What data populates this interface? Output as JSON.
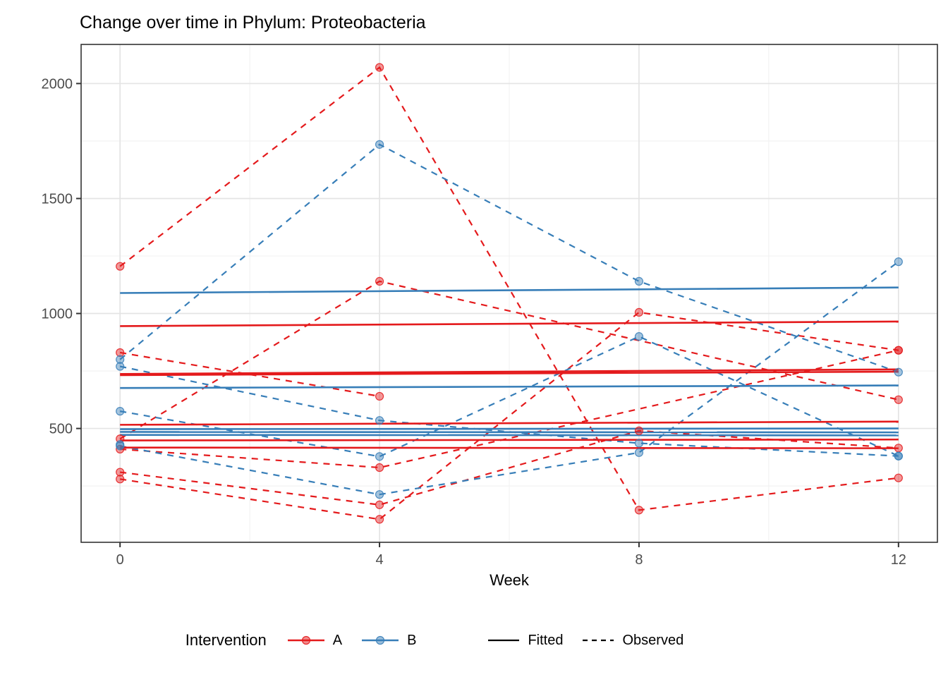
{
  "chart_data": {
    "type": "line",
    "title": "Change over time in Phylum: Proteobacteria",
    "xlabel": "Week",
    "ylabel": "",
    "xlim": [
      -0.6,
      12.6
    ],
    "ylim": [
      5,
      2170
    ],
    "x_ticks": [
      0,
      4,
      8,
      12
    ],
    "x_minor": [
      2,
      6,
      10
    ],
    "y_ticks": [
      500,
      1000,
      1500,
      2000
    ],
    "y_minor": [
      250,
      750,
      1250,
      1750
    ],
    "grid": "on",
    "legend_position": "bottom",
    "interventions": [
      {
        "name": "A",
        "color": "#E41A1C"
      },
      {
        "name": "B",
        "color": "#377EB8"
      }
    ],
    "observed": [
      {
        "group": "A",
        "points": [
          [
            0,
            1205
          ],
          [
            4,
            2070
          ],
          [
            8,
            145
          ],
          [
            12,
            285
          ]
        ]
      },
      {
        "group": "A",
        "points": [
          [
            0,
            455
          ],
          [
            4,
            1140
          ],
          [
            12,
            625
          ]
        ]
      },
      {
        "group": "A",
        "points": [
          [
            0,
            280
          ],
          [
            4,
            105
          ],
          [
            8,
            1005
          ],
          [
            12,
            840
          ]
        ]
      },
      {
        "group": "A",
        "points": [
          [
            0,
            830
          ],
          [
            4,
            640
          ]
        ]
      },
      {
        "group": "A",
        "points": [
          [
            0,
            410
          ],
          [
            4,
            330
          ],
          [
            12,
            840
          ]
        ]
      },
      {
        "group": "A",
        "points": [
          [
            0,
            310
          ],
          [
            4,
            168
          ],
          [
            8,
            490
          ],
          [
            12,
            415
          ]
        ]
      },
      {
        "group": "B",
        "points": [
          [
            0,
            800
          ],
          [
            4,
            1735
          ],
          [
            8,
            1140
          ],
          [
            12,
            745
          ]
        ]
      },
      {
        "group": "B",
        "points": [
          [
            0,
            575
          ],
          [
            4,
            378
          ],
          [
            8,
            900
          ],
          [
            12,
            380
          ]
        ]
      },
      {
        "group": "B",
        "points": [
          [
            0,
            424
          ],
          [
            4,
            213
          ],
          [
            8,
            395
          ],
          [
            12,
            1225
          ]
        ]
      },
      {
        "group": "B",
        "points": [
          [
            0,
            770
          ],
          [
            4,
            535
          ],
          [
            8,
            436
          ],
          [
            12,
            380
          ]
        ]
      },
      {
        "group": "B",
        "points": [
          [
            0,
            430
          ]
        ]
      }
    ],
    "fitted": [
      {
        "group": "A",
        "start": 945,
        "end": 965
      },
      {
        "group": "A",
        "start": 737,
        "end": 757
      },
      {
        "group": "A",
        "start": 732,
        "end": 747
      },
      {
        "group": "A",
        "start": 516,
        "end": 530
      },
      {
        "group": "A",
        "start": 448,
        "end": 452
      },
      {
        "group": "A",
        "start": 417,
        "end": 414
      },
      {
        "group": "B",
        "start": 1089,
        "end": 1113
      },
      {
        "group": "B",
        "start": 676,
        "end": 687
      },
      {
        "group": "B",
        "start": 497,
        "end": 500
      },
      {
        "group": "B",
        "start": 485,
        "end": 483
      },
      {
        "group": "B",
        "start": 472,
        "end": 470
      }
    ],
    "legend": {
      "title": "Intervention",
      "a_label": "A",
      "b_label": "B",
      "fitted_label": "Fitted",
      "observed_label": "Observed"
    },
    "colors": {
      "grid_major": "#E4E4E4",
      "grid_minor": "#F1F1F1",
      "panel_border": "#333333",
      "tick_mark": "#333333",
      "tick_text": "#4D4D4D",
      "linetype_key": "#000000"
    }
  }
}
